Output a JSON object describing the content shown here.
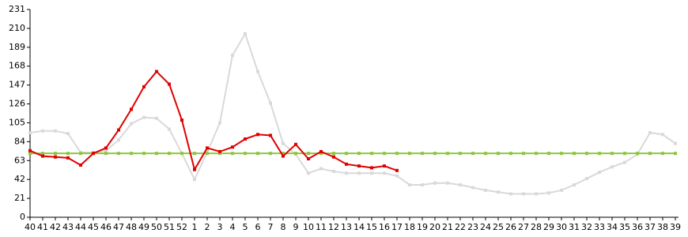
{
  "chart_data": {
    "type": "line",
    "categories": [
      "40",
      "41",
      "42",
      "43",
      "44",
      "45",
      "46",
      "47",
      "48",
      "49",
      "50",
      "51",
      "52",
      "1",
      "2",
      "3",
      "4",
      "5",
      "6",
      "7",
      "8",
      "9",
      "10",
      "11",
      "12",
      "13",
      "14",
      "15",
      "16",
      "17",
      "18",
      "19",
      "20",
      "21",
      "22",
      "23",
      "24",
      "25",
      "26",
      "27",
      "28",
      "29",
      "30",
      "31",
      "32",
      "33",
      "34",
      "35",
      "36",
      "37",
      "38",
      "39"
    ],
    "series": [
      {
        "color": "#d9d9d9",
        "values": [
          94,
          96,
          96,
          93,
          72,
          72,
          74,
          86,
          104,
          111,
          110,
          98,
          71,
          42,
          72,
          105,
          180,
          204,
          162,
          127,
          82,
          70,
          49,
          54,
          51,
          49,
          49,
          49,
          49,
          46,
          36,
          36,
          38,
          38,
          36,
          33,
          30,
          28,
          26,
          26,
          26,
          27,
          30,
          36,
          43,
          50,
          56,
          61,
          70,
          94,
          92,
          82
        ]
      },
      {
        "color": "#8dc63f",
        "values": [
          71,
          71,
          71,
          71,
          71,
          71,
          71,
          71,
          71,
          71,
          71,
          71,
          71,
          71,
          71,
          71,
          71,
          71,
          71,
          71,
          71,
          71,
          71,
          71,
          71,
          71,
          71,
          71,
          71,
          71,
          71,
          71,
          71,
          71,
          71,
          71,
          71,
          71,
          71,
          71,
          71,
          71,
          71,
          71,
          71,
          71,
          71,
          71,
          71,
          71,
          71,
          71
        ]
      },
      {
        "color": "#e00000",
        "values": [
          74,
          68,
          67,
          66,
          58,
          71,
          77,
          97,
          120,
          145,
          162,
          148,
          108,
          53,
          77,
          73,
          78,
          87,
          92,
          91,
          68,
          81,
          65,
          73,
          67,
          59,
          57,
          55,
          57,
          52,
          null,
          null,
          null,
          null,
          null,
          null,
          null,
          null,
          null,
          null,
          null,
          null,
          null,
          null,
          null,
          null,
          null,
          null,
          null,
          null,
          null,
          null
        ]
      }
    ],
    "ylim": [
      0,
      231
    ],
    "yticks": [
      0,
      21,
      42,
      63,
      84,
      105,
      126,
      147,
      168,
      189,
      210,
      231
    ]
  }
}
